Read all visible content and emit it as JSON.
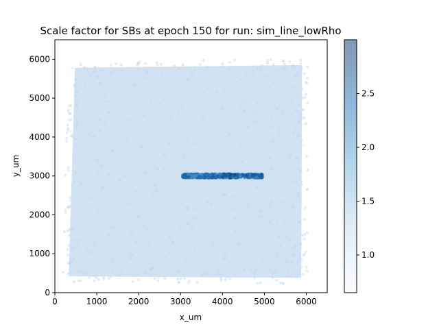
{
  "chart_data": {
    "type": "scatter",
    "title": "Scale factor for SBs at epoch 150 for run: sim_line_lowRho",
    "xlabel": "x_um",
    "ylabel": "y_um",
    "xlim": [
      0,
      6500
    ],
    "ylim": [
      0,
      6500
    ],
    "x_ticks": [
      0,
      1000,
      2000,
      3000,
      4000,
      5000,
      6000
    ],
    "y_ticks": [
      0,
      1000,
      2000,
      3000,
      4000,
      5000,
      6000
    ],
    "grid": false,
    "colormap": "Blues",
    "colorbar": {
      "range": [
        0.65,
        3.0
      ],
      "ticks": [
        1.0,
        1.5,
        2.0,
        2.5
      ],
      "tick_labels": [
        "1.0",
        "1.5",
        "2.0",
        "2.5"
      ]
    },
    "point_alpha": 0.5,
    "regions": [
      {
        "name": "background",
        "shape": "quadrilateral",
        "corners": [
          [
            330,
            420
          ],
          [
            5880,
            380
          ],
          [
            5900,
            5850
          ],
          [
            480,
            5780
          ]
        ],
        "typical_value": 1.2
      },
      {
        "name": "line",
        "shape": "segment",
        "x": [
          3050,
          4950
        ],
        "y": 3000,
        "typical_value": 2.6
      }
    ]
  }
}
